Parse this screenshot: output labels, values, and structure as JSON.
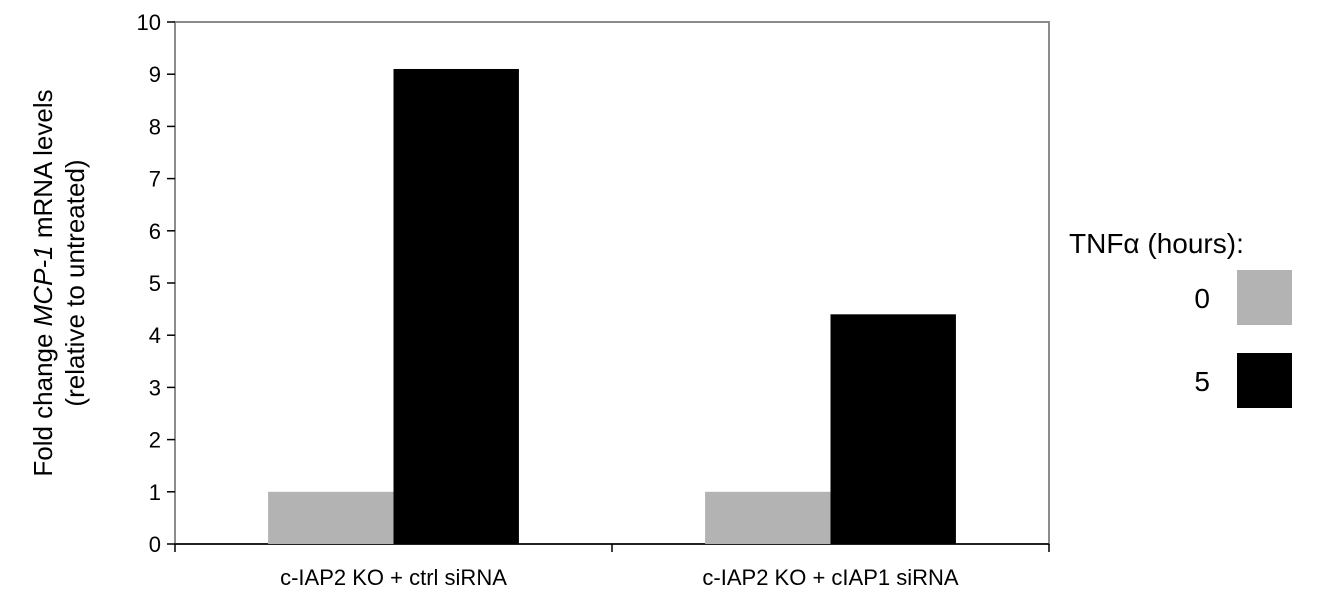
{
  "chart_data": {
    "type": "bar",
    "categories": [
      "c-IAP2 KO + ctrl siRNA",
      "c-IAP2 KO + cIAP1 siRNA"
    ],
    "series": [
      {
        "name": "0",
        "color": "#b3b3b3",
        "values": [
          1.0,
          1.0
        ]
      },
      {
        "name": "5",
        "color": "#000000",
        "values": [
          9.1,
          4.4
        ]
      }
    ],
    "ylabel": {
      "line1_prefix": "Fold change ",
      "line1_italic": "MCP-1",
      "line1_suffix": " mRNA levels",
      "line2": "(relative to untreated)"
    },
    "ylim": [
      0,
      10
    ],
    "yticks": [
      "0",
      "1",
      "2",
      "3",
      "4",
      "5",
      "6",
      "7",
      "8",
      "9",
      "10"
    ],
    "grid": false,
    "legend": {
      "title": "TNFα (hours):",
      "placement": "right"
    }
  }
}
